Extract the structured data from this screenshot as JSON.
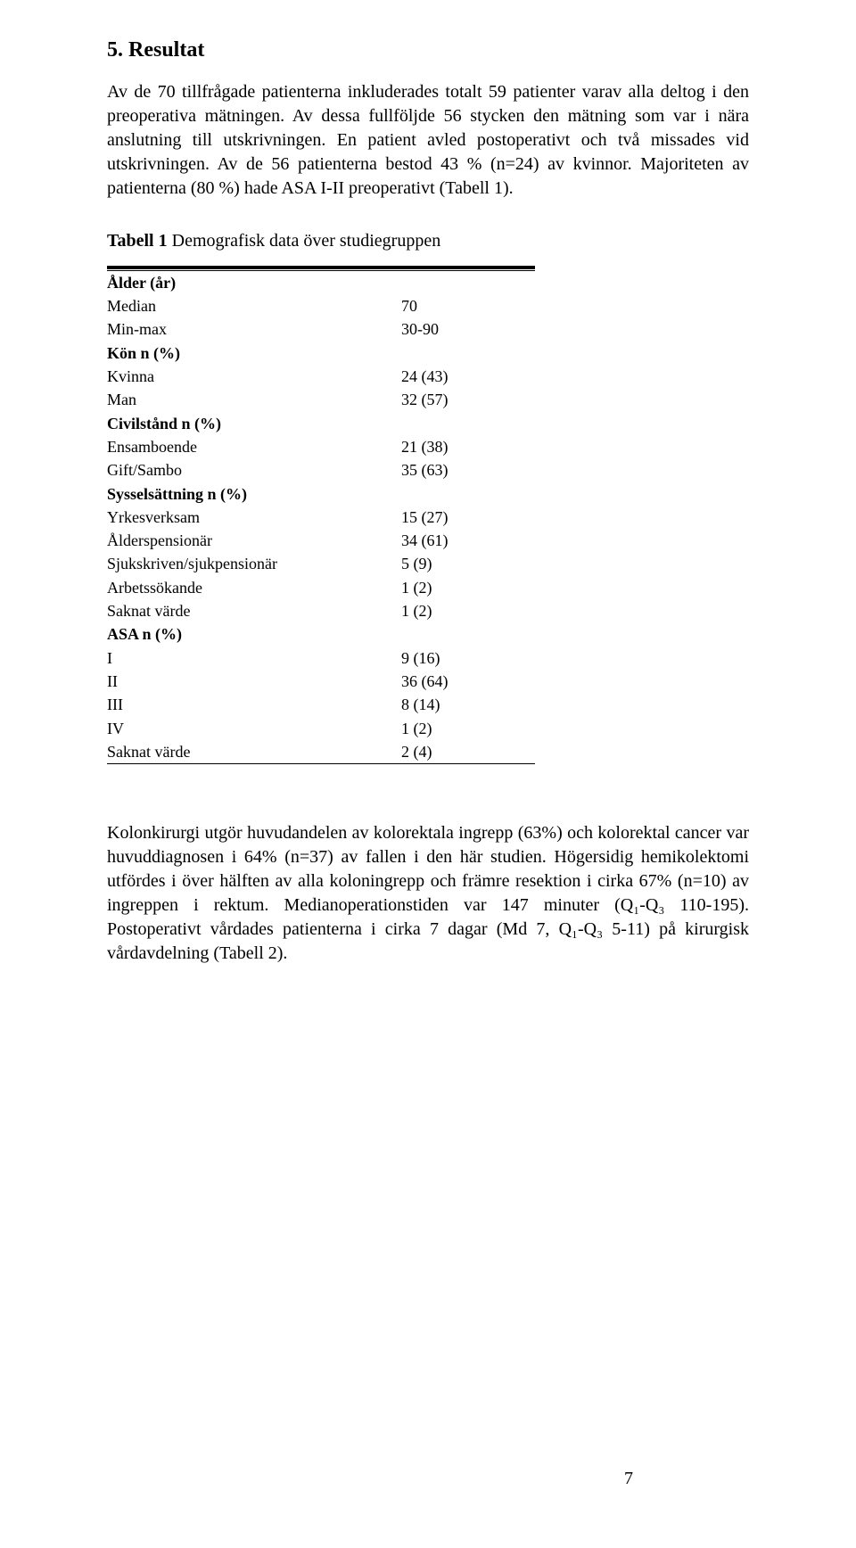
{
  "section": {
    "heading": "5. Resultat"
  },
  "para1": "Av de 70 tillfrågade patienterna inkluderades totalt 59 patienter varav alla deltog i den preoperativa mätningen. Av dessa fullföljde 56 stycken den mätning som var i nära anslutning till utskrivningen. En patient avled postoperativt och två missades vid utskrivningen. Av de 56 patienterna bestod 43 % (n=24) av kvinnor. Majoriteten av patienterna (80 %) hade ASA I-II preoperativt (Tabell 1).",
  "table1": {
    "title_strong": "Tabell 1",
    "title_rest": " Demografisk data över studiegruppen",
    "rows": [
      {
        "type": "cat",
        "label": "Ålder (år)",
        "value": ""
      },
      {
        "type": "sub",
        "label": "Median",
        "value": "70"
      },
      {
        "type": "sub",
        "label": "Min-max",
        "value": "30-90"
      },
      {
        "type": "cat",
        "label": "Kön n (%)",
        "value": ""
      },
      {
        "type": "sub",
        "label": "Kvinna",
        "value": "24 (43)"
      },
      {
        "type": "sub",
        "label": "Man",
        "value": "32 (57)"
      },
      {
        "type": "cat",
        "label": "Civilstånd n (%)",
        "value": ""
      },
      {
        "type": "sub",
        "label": "Ensamboende",
        "value": "21 (38)"
      },
      {
        "type": "sub",
        "label": "Gift/Sambo",
        "value": "35 (63)"
      },
      {
        "type": "cat",
        "label": "Sysselsättning n (%)",
        "value": ""
      },
      {
        "type": "sub",
        "label": "Yrkesverksam",
        "value": "15 (27)"
      },
      {
        "type": "sub",
        "label": "Ålderspensionär",
        "value": "34 (61)"
      },
      {
        "type": "sub",
        "label": "Sjukskriven/sjukpensionär",
        "value": "5 (9)"
      },
      {
        "type": "sub",
        "label": "Arbetssökande",
        "value": "1 (2)"
      },
      {
        "type": "sub",
        "label": "Saknat värde",
        "value": "1 (2)"
      },
      {
        "type": "cat",
        "label": "ASA n (%)",
        "value": ""
      },
      {
        "type": "sub",
        "label": "I",
        "value": "9 (16)"
      },
      {
        "type": "sub",
        "label": "II",
        "value": "36 (64)"
      },
      {
        "type": "sub",
        "label": "III",
        "value": "8 (14)"
      },
      {
        "type": "sub",
        "label": "IV",
        "value": "1 (2)"
      },
      {
        "type": "sub",
        "label": "Saknat värde",
        "value": "2 (4)"
      }
    ]
  },
  "para2": "Kolonkirurgi utgör huvudandelen av kolorektala ingrepp (63%) och kolorektal cancer var huvuddiagnosen i 64% (n=37) av fallen i den här studien. Högersidig hemikolektomi utfördes i över hälften av alla koloningrepp och främre resektion i cirka 67% (n=10) av ingreppen i rektum. Medianoperationstiden var 147 minuter (Q₁-Q₃ 110-195). Postoperativt vårdades patienterna i cirka 7 dagar (Md 7, Q₁-Q₃ 5-11) på kirurgisk vårdavdelning (Tabell 2).",
  "page_number": "7",
  "colors": {
    "text": "#000000",
    "background": "#ffffff",
    "rule": "#000000"
  }
}
